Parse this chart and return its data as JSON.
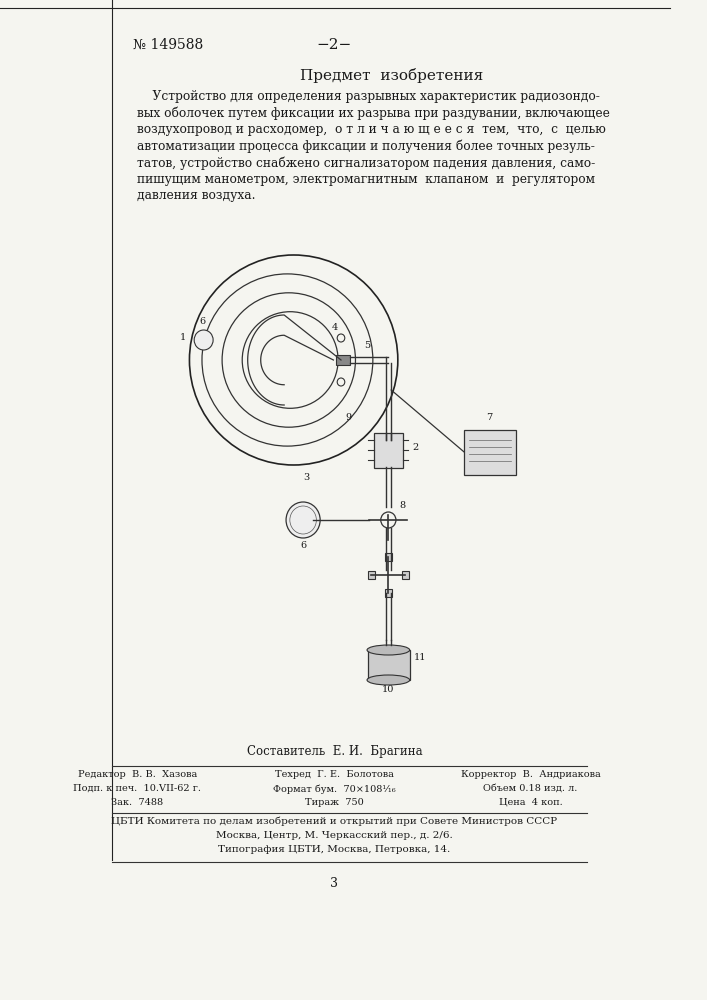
{
  "bg_color": "#f5f5f0",
  "page_border_color": "#222222",
  "text_color": "#1a1a1a",
  "header_left": "№ 149588",
  "header_center": "−2−",
  "section_title": "Предмет  изобретения",
  "body_text": "Устройство для определения разрывных характеристик радиозондовых оболочек путем фиксации их разрыва при раздувании, включающее воздухопровод и расходомер,  о т л и ч а ю щ е е с я  тем,  что,  с  целью автоматизации процесса фиксации и получения более точных результатов, устройство снабжено сигнализатором падения давления, самопишущим манометром, электромагнитным  клапаном  и  регулятором давления воздуха.",
  "composer_line": "Составитель  Е. И.  Брагина",
  "footer_rows": [
    [
      "Редактор  В. В.  Хазова",
      "Техред  Г. Е.  Болотова",
      "Корректор  В.  Андриакова"
    ],
    [
      "Подп. к печ.  10.VII-62 г.",
      "Формат бум.  70×108¹⁄₁₆",
      "Объем 0.18 изд. л."
    ],
    [
      "Зак.  7488",
      "Тираж  750",
      "Цена  4 коп."
    ]
  ],
  "footer_institution": "ЦБТИ Комитета по делам изобретений и открытий при Совете Министров СССР",
  "footer_address": "Москва, Центр, М. Черкасский пер., д. 2/6.",
  "footer_print": "Типография ЦБТИ, Москва, Петровка, 14.",
  "page_number": "3"
}
